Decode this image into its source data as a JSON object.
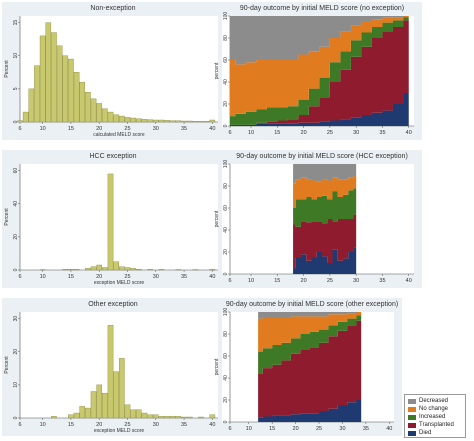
{
  "chart_data": [
    {
      "type": "bar",
      "title": "Non-exception",
      "xlabel": "calculated MELD score",
      "ylabel": "Percent",
      "xlim": [
        6,
        41
      ],
      "ylim": [
        0,
        16
      ],
      "xticks": [
        6,
        10,
        15,
        20,
        25,
        30,
        35,
        40
      ],
      "yticks": [
        0,
        5,
        10,
        15
      ],
      "color": "#c8c86e",
      "x": [
        6,
        7,
        8,
        9,
        10,
        11,
        12,
        13,
        14,
        15,
        16,
        17,
        18,
        19,
        20,
        21,
        22,
        23,
        24,
        25,
        26,
        27,
        28,
        29,
        30,
        31,
        32,
        33,
        34,
        35,
        36,
        37,
        38,
        39,
        40
      ],
      "values": [
        0.2,
        1.5,
        5,
        8.5,
        13,
        15,
        13.5,
        11.5,
        10,
        9.5,
        7.5,
        6,
        4.5,
        3.5,
        2.8,
        2,
        1.5,
        1.1,
        0.9,
        0.7,
        0.6,
        0.5,
        0.4,
        0.35,
        0.3,
        0.3,
        0.25,
        0.2,
        0.2,
        0.15,
        0.15,
        0.1,
        0.1,
        0.1,
        0.3
      ]
    },
    {
      "type": "area",
      "stacked": true,
      "percent": true,
      "title": "90-day outcome by initial MELD score (no exception)",
      "ylabel": "percent",
      "xlim": [
        6,
        41
      ],
      "ylim": [
        0,
        100
      ],
      "xticks": [
        6,
        10,
        15,
        20,
        25,
        30,
        35,
        40
      ],
      "yticks": [
        0,
        20,
        40,
        60,
        80,
        100
      ],
      "x": [
        6,
        8,
        10,
        12,
        14,
        16,
        18,
        20,
        22,
        24,
        26,
        28,
        30,
        32,
        34,
        36,
        38,
        40
      ],
      "series": [
        {
          "name": "Died",
          "color": "#1e3a70",
          "values": [
            1,
            1,
            1,
            2,
            2,
            2,
            2,
            3,
            3,
            4,
            5,
            6,
            8,
            10,
            12,
            14,
            20,
            30
          ]
        },
        {
          "name": "Transplanted",
          "color": "#8e1c2e",
          "values": [
            0,
            0,
            0,
            1,
            2,
            3,
            4,
            7,
            15,
            22,
            35,
            45,
            55,
            62,
            68,
            72,
            70,
            66
          ]
        },
        {
          "name": "Increased",
          "color": "#3e7a26",
          "values": [
            8,
            10,
            12,
            12,
            13,
            12,
            12,
            14,
            16,
            18,
            18,
            17,
            15,
            13,
            10,
            8,
            6,
            3
          ]
        },
        {
          "name": "No change",
          "color": "#e07b1f",
          "values": [
            51,
            45,
            45,
            45,
            43,
            43,
            42,
            41,
            34,
            28,
            22,
            18,
            13,
            10,
            7,
            5,
            3,
            1
          ]
        },
        {
          "name": "Decreased",
          "color": "#8c8c8c",
          "values": [
            40,
            44,
            42,
            40,
            40,
            40,
            40,
            35,
            32,
            28,
            20,
            14,
            9,
            5,
            3,
            1,
            1,
            0
          ]
        }
      ]
    },
    {
      "type": "bar",
      "title": "HCC exception",
      "xlabel": "exception MELD score",
      "ylabel": "Percent",
      "xlim": [
        6,
        41
      ],
      "ylim": [
        0,
        64
      ],
      "xticks": [
        6,
        10,
        15,
        20,
        25,
        30,
        35,
        40
      ],
      "yticks": [
        0,
        20,
        40,
        60
      ],
      "color": "#c8c86e",
      "x": [
        10,
        14,
        15,
        16,
        18,
        19,
        20,
        21,
        22,
        23,
        24,
        25,
        26,
        27,
        29,
        31,
        34,
        37,
        40
      ],
      "values": [
        0.3,
        0.5,
        0.5,
        0.5,
        1,
        2,
        3,
        1.5,
        58,
        5,
        2,
        1.5,
        1,
        0.5,
        0.5,
        0.4,
        0.3,
        0.3,
        0.5
      ]
    },
    {
      "type": "area",
      "stacked": true,
      "percent": true,
      "title": "90-day outcome by initial MELD score (HCC exception)",
      "ylabel": "percent",
      "xlim": [
        6,
        41
      ],
      "ylim": [
        0,
        100
      ],
      "xticks": [
        6,
        10,
        15,
        20,
        25,
        30,
        35,
        40
      ],
      "yticks": [
        0,
        20,
        40,
        60,
        80,
        100
      ],
      "x": [
        18,
        19,
        20,
        21,
        22,
        23,
        24,
        25,
        26,
        27,
        28,
        29,
        30
      ],
      "series": [
        {
          "name": "Died",
          "color": "#1e3a70",
          "values": [
            5,
            15,
            18,
            12,
            15,
            20,
            16,
            10,
            22,
            12,
            14,
            20,
            24
          ]
        },
        {
          "name": "Transplanted",
          "color": "#8e1c2e",
          "values": [
            40,
            28,
            30,
            35,
            33,
            28,
            30,
            40,
            26,
            38,
            36,
            30,
            30
          ]
        },
        {
          "name": "Increased",
          "color": "#3e7a26",
          "values": [
            15,
            25,
            20,
            23,
            20,
            22,
            25,
            18,
            27,
            20,
            22,
            26,
            24
          ]
        },
        {
          "name": "No change",
          "color": "#e07b1f",
          "values": [
            22,
            18,
            20,
            16,
            17,
            14,
            15,
            17,
            13,
            16,
            14,
            12,
            12
          ]
        },
        {
          "name": "Decreased",
          "color": "#8c8c8c",
          "values": [
            18,
            14,
            12,
            14,
            15,
            16,
            14,
            15,
            12,
            14,
            14,
            12,
            10
          ]
        }
      ]
    },
    {
      "type": "bar",
      "title": "Other exception",
      "xlabel": "exception MELD score",
      "ylabel": "Percent",
      "xlim": [
        6,
        41
      ],
      "ylim": [
        0,
        32
      ],
      "xticks": [
        6,
        10,
        15,
        20,
        25,
        30,
        35,
        40
      ],
      "yticks": [
        0,
        10,
        20,
        30
      ],
      "color": "#c8c86e",
      "x": [
        12,
        15,
        16,
        17,
        18,
        19,
        20,
        21,
        22,
        23,
        24,
        25,
        26,
        27,
        28,
        29,
        30,
        31,
        32,
        33,
        34,
        35,
        36,
        38,
        40
      ],
      "values": [
        0.5,
        1,
        1.5,
        3.5,
        3,
        8,
        10,
        7.5,
        28,
        14,
        18,
        4,
        2.5,
        2.5,
        1.5,
        1,
        1,
        0.5,
        0.5,
        0.5,
        0.5,
        0.3,
        0.3,
        0.3,
        1
      ]
    },
    {
      "type": "area",
      "stacked": true,
      "percent": true,
      "title": "90-day outcome by initial MELD score (other exception)",
      "ylabel": "percent",
      "xlim": [
        6,
        41
      ],
      "ylim": [
        0,
        100
      ],
      "xticks": [
        6,
        10,
        15,
        20,
        25,
        30,
        35,
        40
      ],
      "yticks": [
        0,
        20,
        40,
        60,
        80,
        100
      ],
      "x": [
        12,
        14,
        16,
        18,
        20,
        22,
        24,
        26,
        28,
        30,
        32,
        34
      ],
      "series": [
        {
          "name": "Died",
          "color": "#1e3a70",
          "values": [
            4,
            5,
            6,
            6,
            7,
            8,
            8,
            10,
            12,
            15,
            18,
            20
          ]
        },
        {
          "name": "Transplanted",
          "color": "#8e1c2e",
          "values": [
            40,
            44,
            46,
            50,
            55,
            58,
            60,
            62,
            66,
            68,
            70,
            72
          ]
        },
        {
          "name": "Increased",
          "color": "#3e7a26",
          "values": [
            20,
            18,
            18,
            16,
            14,
            14,
            14,
            12,
            10,
            8,
            6,
            5
          ]
        },
        {
          "name": "No change",
          "color": "#e07b1f",
          "values": [
            30,
            28,
            25,
            23,
            20,
            16,
            14,
            12,
            10,
            7,
            5,
            3
          ]
        },
        {
          "name": "Decreased",
          "color": "#8c8c8c",
          "values": [
            6,
            5,
            5,
            5,
            4,
            4,
            4,
            4,
            2,
            2,
            1,
            0
          ]
        }
      ]
    }
  ],
  "legend": {
    "items": [
      {
        "label": "Decreased",
        "color": "#8c8c8c"
      },
      {
        "label": "No change",
        "color": "#e07b1f"
      },
      {
        "label": "Increased",
        "color": "#3e7a26"
      },
      {
        "label": "Transplanted",
        "color": "#8e1c2e"
      },
      {
        "label": "Died",
        "color": "#1e3a70"
      }
    ]
  }
}
